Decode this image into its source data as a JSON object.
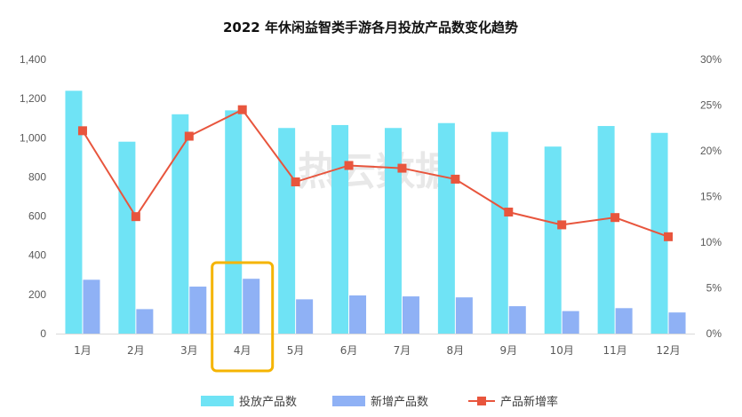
{
  "chart_data": {
    "type": "bar",
    "title": "2022 年休闲益智类手游各月投放产品数变化趋势",
    "categories": [
      "1月",
      "2月",
      "3月",
      "4月",
      "5月",
      "6月",
      "7月",
      "8月",
      "9月",
      "10月",
      "11月",
      "12月"
    ],
    "series": [
      {
        "name": "投放产品数",
        "type": "bar",
        "axis": "left",
        "color": "#6fe3f5",
        "values": [
          1240,
          980,
          1120,
          1140,
          1050,
          1065,
          1050,
          1075,
          1030,
          955,
          1060,
          1025
        ]
      },
      {
        "name": "新增产品数",
        "type": "bar",
        "axis": "left",
        "color": "#8fb1f5",
        "values": [
          275,
          125,
          240,
          280,
          175,
          195,
          190,
          185,
          140,
          115,
          130,
          108
        ]
      },
      {
        "name": "产品新增率",
        "type": "line",
        "axis": "right",
        "color": "#e8553d",
        "values": [
          22.2,
          12.8,
          21.6,
          24.5,
          16.6,
          18.4,
          18.1,
          16.9,
          13.3,
          11.9,
          12.7,
          10.6
        ]
      }
    ],
    "y_left": {
      "min": 0,
      "max": 1400,
      "ticks": [
        "0",
        "200",
        "400",
        "600",
        "800",
        "1,000",
        "1,200",
        "1,400"
      ]
    },
    "y_right": {
      "min": 0,
      "max": 30,
      "ticks": [
        "0%",
        "5%",
        "10%",
        "15%",
        "20%",
        "25%",
        "30%"
      ]
    },
    "highlight_category": "4月",
    "highlight_color": "#f5b400",
    "grid": false,
    "legend_position": "bottom",
    "watermark": "热云数据"
  }
}
